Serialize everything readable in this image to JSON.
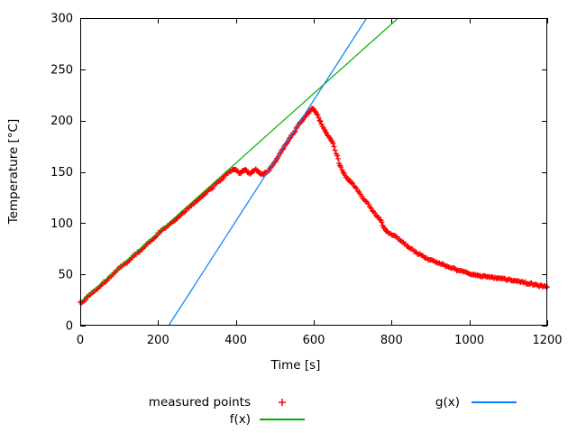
{
  "window": {
    "background": "#ffffff"
  },
  "chart_data": {
    "type": "scatter",
    "title": "",
    "xlabel": "Time [s]",
    "ylabel": "Temperature [°C]",
    "xlim": [
      0,
      1200
    ],
    "ylim": [
      0,
      300
    ],
    "xticks": [
      0,
      200,
      400,
      600,
      800,
      1000,
      1200
    ],
    "yticks": [
      0,
      50,
      100,
      150,
      200,
      250,
      300
    ],
    "grid": false,
    "legend_position": "below plot, two columns",
    "series": [
      {
        "name": "measured points",
        "type": "scatter",
        "marker": "plus",
        "color": "#ff0000",
        "points": [
          [
            0,
            22
          ],
          [
            10,
            25
          ],
          [
            20,
            28
          ],
          [
            30,
            32
          ],
          [
            40,
            35
          ],
          [
            50,
            38
          ],
          [
            60,
            42
          ],
          [
            70,
            45
          ],
          [
            80,
            48
          ],
          [
            90,
            53
          ],
          [
            100,
            56
          ],
          [
            110,
            59
          ],
          [
            120,
            62
          ],
          [
            130,
            65
          ],
          [
            140,
            69
          ],
          [
            150,
            72
          ],
          [
            160,
            75
          ],
          [
            170,
            79
          ],
          [
            180,
            82
          ],
          [
            190,
            86
          ],
          [
            200,
            90
          ],
          [
            210,
            93
          ],
          [
            220,
            96
          ],
          [
            230,
            99
          ],
          [
            240,
            102
          ],
          [
            250,
            105
          ],
          [
            260,
            109
          ],
          [
            270,
            112
          ],
          [
            280,
            115
          ],
          [
            290,
            119
          ],
          [
            300,
            122
          ],
          [
            310,
            125
          ],
          [
            320,
            128
          ],
          [
            330,
            132
          ],
          [
            340,
            135
          ],
          [
            350,
            139
          ],
          [
            360,
            142
          ],
          [
            370,
            146
          ],
          [
            380,
            149
          ],
          [
            390,
            152
          ],
          [
            395,
            153
          ],
          [
            400,
            152
          ],
          [
            405,
            150
          ],
          [
            410,
            149
          ],
          [
            415,
            150
          ],
          [
            420,
            152
          ],
          [
            425,
            152
          ],
          [
            430,
            150
          ],
          [
            435,
            149
          ],
          [
            440,
            149
          ],
          [
            445,
            151
          ],
          [
            450,
            152
          ],
          [
            455,
            151
          ],
          [
            460,
            149
          ],
          [
            465,
            148
          ],
          [
            470,
            148
          ],
          [
            475,
            149
          ],
          [
            480,
            150
          ],
          [
            485,
            152
          ],
          [
            490,
            155
          ],
          [
            495,
            157
          ],
          [
            500,
            160
          ],
          [
            505,
            163
          ],
          [
            510,
            166
          ],
          [
            515,
            169
          ],
          [
            520,
            172
          ],
          [
            525,
            175
          ],
          [
            530,
            178
          ],
          [
            535,
            181
          ],
          [
            540,
            184
          ],
          [
            545,
            186
          ],
          [
            550,
            189
          ],
          [
            555,
            192
          ],
          [
            560,
            195
          ],
          [
            565,
            198
          ],
          [
            570,
            200
          ],
          [
            575,
            203
          ],
          [
            580,
            205
          ],
          [
            585,
            207
          ],
          [
            590,
            209
          ],
          [
            595,
            211
          ],
          [
            600,
            211
          ],
          [
            605,
            209
          ],
          [
            610,
            205
          ],
          [
            615,
            201
          ],
          [
            620,
            197
          ],
          [
            625,
            193
          ],
          [
            630,
            189
          ],
          [
            635,
            186
          ],
          [
            640,
            184
          ],
          [
            645,
            181
          ],
          [
            650,
            177
          ],
          [
            655,
            171
          ],
          [
            660,
            165
          ],
          [
            665,
            159
          ],
          [
            670,
            154
          ],
          [
            675,
            150
          ],
          [
            680,
            147
          ],
          [
            685,
            144
          ],
          [
            690,
            142
          ],
          [
            695,
            140
          ],
          [
            700,
            138
          ],
          [
            710,
            133
          ],
          [
            720,
            128
          ],
          [
            730,
            123
          ],
          [
            740,
            118
          ],
          [
            750,
            113
          ],
          [
            760,
            108
          ],
          [
            770,
            103
          ],
          [
            775,
            100
          ],
          [
            780,
            96
          ],
          [
            785,
            93
          ],
          [
            790,
            91
          ],
          [
            800,
            89
          ],
          [
            810,
            87
          ],
          [
            820,
            84
          ],
          [
            830,
            81
          ],
          [
            840,
            78
          ],
          [
            850,
            75
          ],
          [
            860,
            72
          ],
          [
            870,
            70
          ],
          [
            880,
            68
          ],
          [
            890,
            66
          ],
          [
            900,
            64
          ],
          [
            910,
            63
          ],
          [
            920,
            61
          ],
          [
            930,
            60
          ],
          [
            940,
            58
          ],
          [
            950,
            57
          ],
          [
            960,
            56
          ],
          [
            970,
            54
          ],
          [
            980,
            53
          ],
          [
            990,
            52
          ],
          [
            1000,
            51
          ],
          [
            1020,
            49
          ],
          [
            1040,
            48
          ],
          [
            1060,
            47
          ],
          [
            1080,
            46
          ],
          [
            1100,
            45
          ],
          [
            1120,
            44
          ],
          [
            1140,
            42
          ],
          [
            1160,
            41
          ],
          [
            1180,
            39
          ],
          [
            1200,
            38
          ]
        ]
      },
      {
        "name": "f(x)",
        "type": "line",
        "color": "#00b000",
        "endpoints": [
          [
            0,
            23
          ],
          [
            817,
            300
          ]
        ],
        "slope": 0.339,
        "intercept": 23
      },
      {
        "name": "g(x)",
        "type": "line",
        "color": "#0080ff",
        "endpoints": [
          [
            227,
            0
          ],
          [
            736,
            300
          ]
        ],
        "slope": 0.589,
        "intercept": -133.8
      }
    ]
  },
  "colors": {
    "measured": "#ff0000",
    "f_line": "#00b000",
    "g_line": "#0080ff",
    "axis": "#000000",
    "text": "#000000"
  }
}
